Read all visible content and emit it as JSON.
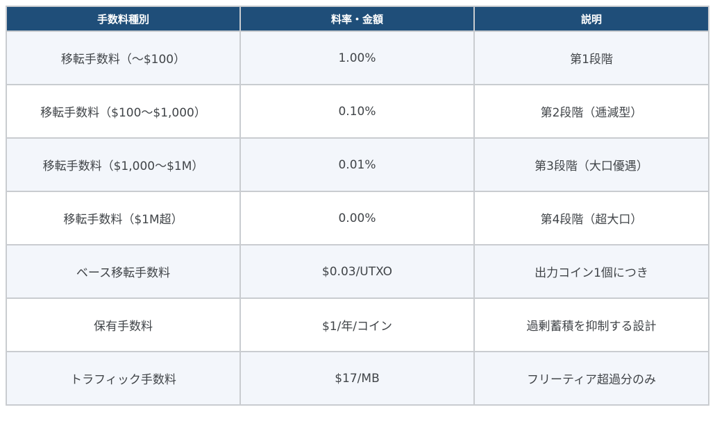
{
  "table": {
    "headers": [
      "手数料種別",
      "料率・金額",
      "説明"
    ],
    "rows": [
      [
        "移転手数料（〜$100）",
        "1.00%",
        "第1段階"
      ],
      [
        "移転手数料（$100〜$1,000）",
        "0.10%",
        "第2段階（逓減型）"
      ],
      [
        "移転手数料（$1,000〜$1M）",
        "0.01%",
        "第3段階（大口優遇）"
      ],
      [
        "移転手数料（$1M超）",
        "0.00%",
        "第4段階（超大口）"
      ],
      [
        "ベース移転手数料",
        "$0.03/UTXO",
        "出力コイン1個につき"
      ],
      [
        "保有手数料",
        "$1/年/コイン",
        "過剰蓄積を抑制する設計"
      ],
      [
        "トラフィック手数料",
        "$17/MB",
        "フリーティア超過分のみ"
      ]
    ]
  },
  "colors": {
    "header_bg": "#1f4e79",
    "header_text": "#ffffff",
    "border": "#c9ccd0",
    "alt_row_bg": "#f3f6fb",
    "body_text": "#404448"
  }
}
